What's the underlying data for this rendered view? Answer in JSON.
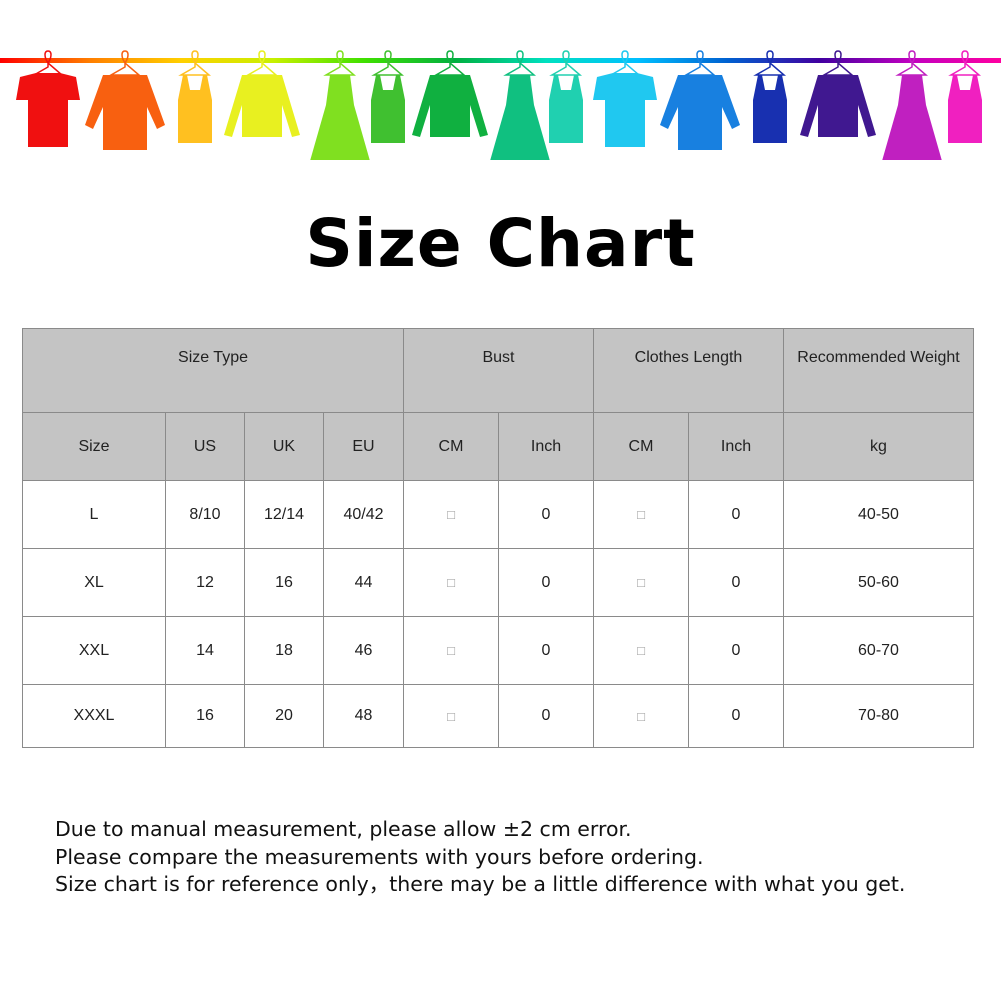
{
  "banner": {
    "rail_colors": [
      "#ff0000",
      "#ff8000",
      "#ffd000",
      "#c8f000",
      "#40e000",
      "#00b040",
      "#00e0c0",
      "#00c0ff",
      "#0060d0",
      "#4000a0",
      "#c000c0",
      "#ff00a0"
    ],
    "garments": [
      {
        "type": "tshirt",
        "color": "#f01010"
      },
      {
        "type": "shirt",
        "color": "#f86010"
      },
      {
        "type": "tank",
        "color": "#ffc020"
      },
      {
        "type": "sweater",
        "color": "#e8f020"
      },
      {
        "type": "dress",
        "color": "#80e020"
      },
      {
        "type": "tank",
        "color": "#40c030"
      },
      {
        "type": "sweater",
        "color": "#10b040"
      },
      {
        "type": "dress",
        "color": "#10c080"
      },
      {
        "type": "tank",
        "color": "#20d0b0"
      },
      {
        "type": "tshirt",
        "color": "#20c8f0"
      },
      {
        "type": "shirt",
        "color": "#1880e0"
      },
      {
        "type": "tank",
        "color": "#1830b0"
      },
      {
        "type": "sweater",
        "color": "#401890"
      },
      {
        "type": "dress",
        "color": "#c020c0"
      },
      {
        "type": "tank",
        "color": "#f020c0"
      }
    ]
  },
  "title": "Size Chart",
  "table": {
    "group_headers": [
      "Size Type",
      "Bust",
      "Clothes Length",
      "Recommended  Weight"
    ],
    "sub_headers": [
      "Size",
      "US",
      "UK",
      "EU",
      "CM",
      "Inch",
      "CM",
      "Inch",
      "kg"
    ],
    "rows": [
      [
        "L",
        "8/10",
        "12/14",
        "40/42",
        "□",
        "0",
        "□",
        "0",
        "40-50"
      ],
      [
        "XL",
        "12",
        "16",
        "44",
        "□",
        "0",
        "□",
        "0",
        "50-60"
      ],
      [
        "XXL",
        "14",
        "18",
        "46",
        "□",
        "0",
        "□",
        "0",
        "60-70"
      ],
      [
        "XXXL",
        "16",
        "20",
        "48",
        "□",
        "0",
        "□",
        "0",
        "70-80"
      ]
    ]
  },
  "notes": [
    "Due to manual measurement, please allow ±2 cm error.",
    "Please compare the measurements with yours before ordering.",
    "Size chart is for reference only，there may be a little difference with what you get."
  ]
}
